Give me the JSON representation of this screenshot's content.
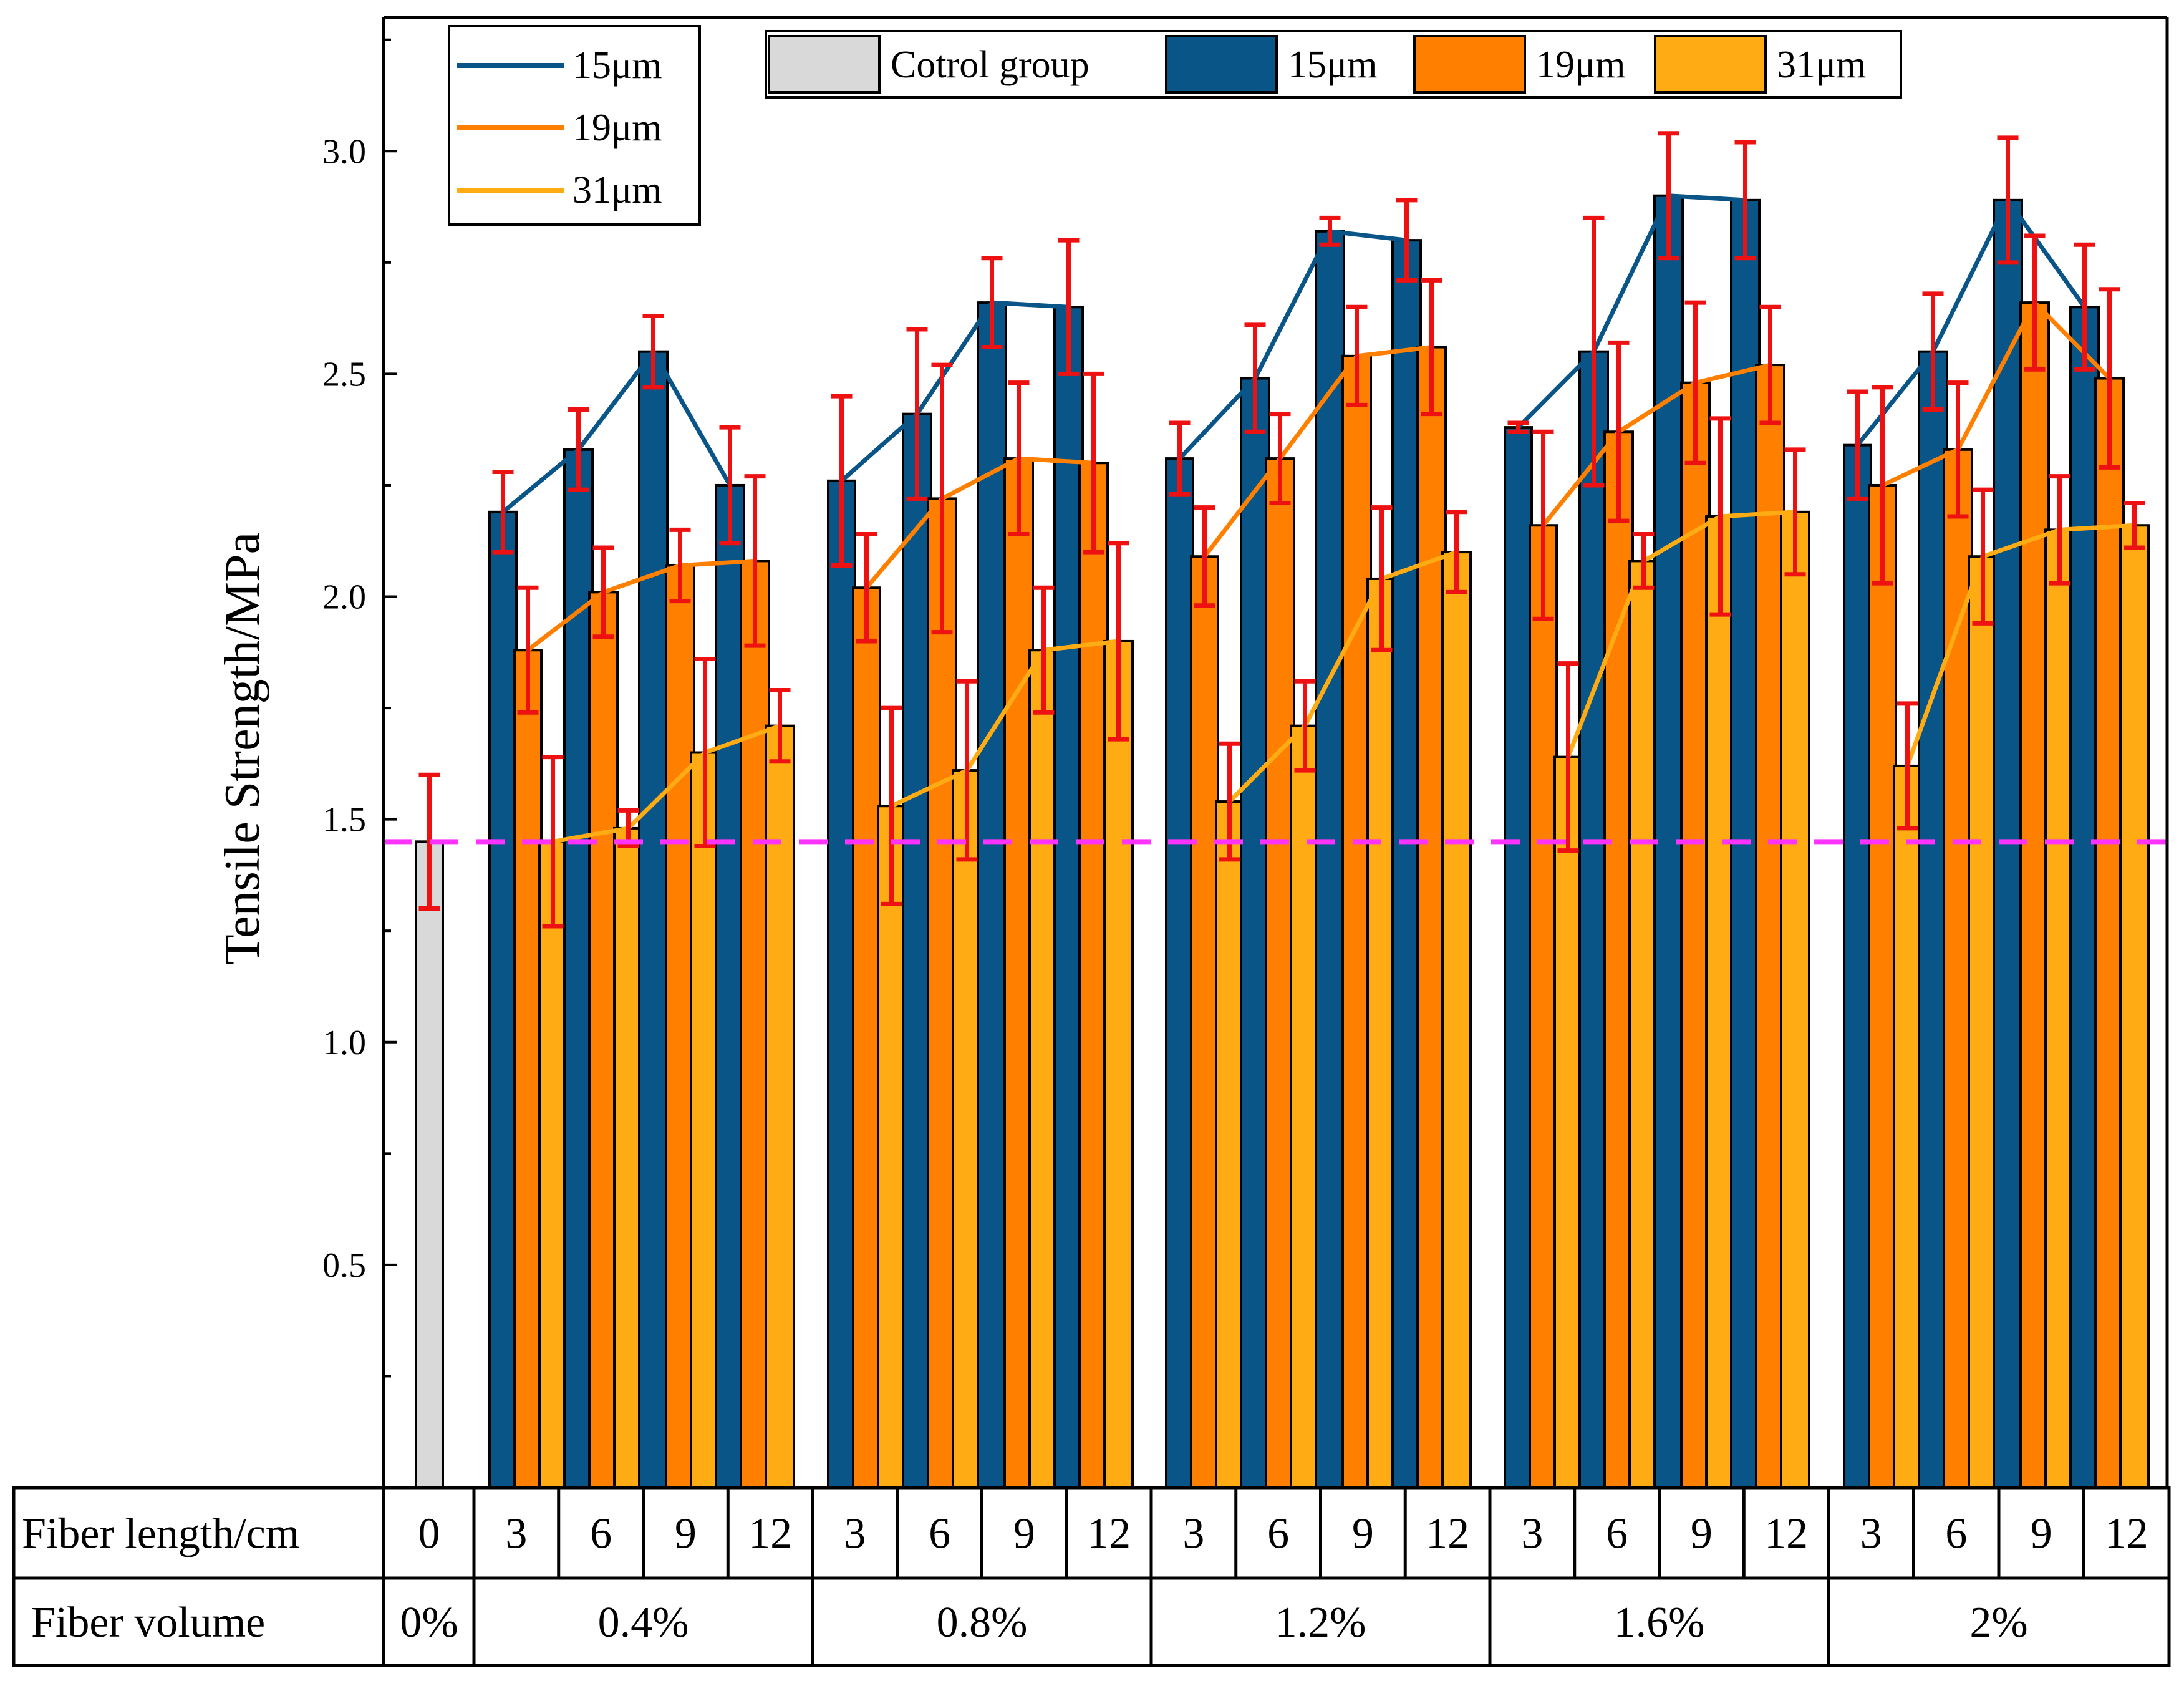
{
  "chart_data": {
    "type": "bar",
    "ylabel": "Tensile Strength/MPa",
    "ylim": [
      0,
      3.3
    ],
    "yticks": [
      0.5,
      1.0,
      1.5,
      2.0,
      2.5,
      3.0
    ],
    "ytick_labels": [
      "0.5",
      "1.0",
      "1.5",
      "2.0",
      "2.5",
      "3.0"
    ],
    "reference_line": {
      "value": 1.45,
      "color": "#ff33ff",
      "style": "dashed"
    },
    "colors": {
      "control": "#d9d9d9",
      "s15": "#0a5587",
      "s19": "#ff8000",
      "s31": "#ffac14",
      "error": "#ee1111"
    },
    "bar_legend": [
      "Cotrol group",
      "15μm",
      "19μm",
      "31μm"
    ],
    "line_legend": [
      "15μm",
      "19μm",
      "31μm"
    ],
    "control": {
      "label": "0",
      "volume": "0%",
      "value": 1.45,
      "error": 0.15
    },
    "groups": [
      {
        "volume": "0.4%",
        "lengths": [
          "3",
          "6",
          "9",
          "12"
        ],
        "series": {
          "s15": {
            "values": [
              2.19,
              2.33,
              2.55,
              2.25
            ],
            "errors": [
              0.09,
              0.09,
              0.08,
              0.13
            ]
          },
          "s19": {
            "values": [
              1.88,
              2.01,
              2.07,
              2.08
            ],
            "errors": [
              0.14,
              0.1,
              0.08,
              0.19
            ]
          },
          "s31": {
            "values": [
              1.45,
              1.48,
              1.65,
              1.71
            ],
            "errors": [
              0.19,
              0.04,
              0.21,
              0.08
            ]
          }
        }
      },
      {
        "volume": "0.8%",
        "lengths": [
          "3",
          "6",
          "9",
          "12"
        ],
        "series": {
          "s15": {
            "values": [
              2.26,
              2.41,
              2.66,
              2.65
            ],
            "errors": [
              0.19,
              0.19,
              0.1,
              0.15
            ]
          },
          "s19": {
            "values": [
              2.02,
              2.22,
              2.31,
              2.3
            ],
            "errors": [
              0.12,
              0.3,
              0.17,
              0.2
            ]
          },
          "s31": {
            "values": [
              1.53,
              1.61,
              1.88,
              1.9
            ],
            "errors": [
              0.22,
              0.2,
              0.14,
              0.22
            ]
          }
        }
      },
      {
        "volume": "1.2%",
        "lengths": [
          "3",
          "6",
          "9",
          "12"
        ],
        "series": {
          "s15": {
            "values": [
              2.31,
              2.49,
              2.82,
              2.8
            ],
            "errors": [
              0.08,
              0.12,
              0.03,
              0.09
            ]
          },
          "s19": {
            "values": [
              2.09,
              2.31,
              2.54,
              2.56
            ],
            "errors": [
              0.11,
              0.1,
              0.11,
              0.15
            ]
          },
          "s31": {
            "values": [
              1.54,
              1.71,
              2.04,
              2.1
            ],
            "errors": [
              0.13,
              0.1,
              0.16,
              0.09
            ]
          }
        }
      },
      {
        "volume": "1.6%",
        "lengths": [
          "3",
          "6",
          "9",
          "12"
        ],
        "series": {
          "s15": {
            "values": [
              2.38,
              2.55,
              2.9,
              2.89
            ],
            "errors": [
              0.01,
              0.3,
              0.14,
              0.13
            ]
          },
          "s19": {
            "values": [
              2.16,
              2.37,
              2.48,
              2.52
            ],
            "errors": [
              0.21,
              0.2,
              0.18,
              0.13
            ]
          },
          "s31": {
            "values": [
              1.64,
              2.08,
              2.18,
              2.19
            ],
            "errors": [
              0.21,
              0.06,
              0.22,
              0.14
            ]
          }
        }
      },
      {
        "volume": "2%",
        "lengths": [
          "3",
          "6",
          "9",
          "12"
        ],
        "series": {
          "s15": {
            "values": [
              2.34,
              2.55,
              2.89,
              2.65
            ],
            "errors": [
              0.12,
              0.13,
              0.14,
              0.14
            ]
          },
          "s19": {
            "values": [
              2.25,
              2.33,
              2.66,
              2.49
            ],
            "errors": [
              0.22,
              0.15,
              0.15,
              0.2
            ]
          },
          "s31": {
            "values": [
              1.62,
              2.09,
              2.15,
              2.16
            ],
            "errors": [
              0.14,
              0.15,
              0.12,
              0.05
            ]
          }
        }
      }
    ]
  },
  "table": {
    "row1_label": "Fiber length/cm",
    "row2_label": "Fiber volume"
  }
}
